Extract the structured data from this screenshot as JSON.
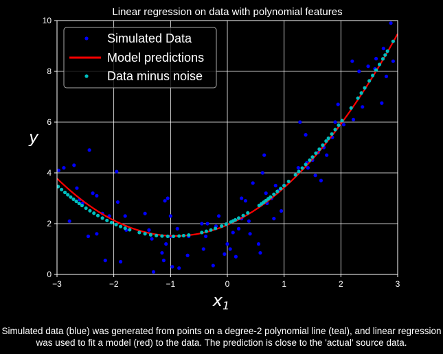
{
  "chart_data": {
    "type": "scatter",
    "title": "Linear regression on data with polynomial features",
    "xlabel": "x",
    "xlabel_sub": "1",
    "ylabel": "y",
    "xlim": [
      -3,
      3
    ],
    "ylim": [
      0,
      10
    ],
    "xticks": [
      "−3",
      "−2",
      "−1",
      "0",
      "1",
      "2",
      "3"
    ],
    "yticks": [
      "0",
      "2",
      "4",
      "6",
      "8",
      "10"
    ],
    "grid": true,
    "legend_position": "top-left",
    "series": [
      {
        "name": "Simulated Data",
        "kind": "points",
        "color": "#0000ff",
        "points": [
          [
            -2.97,
            4.1
          ],
          [
            -2.88,
            4.2
          ],
          [
            -2.78,
            2.1
          ],
          [
            -2.7,
            4.3
          ],
          [
            -2.65,
            3.4
          ],
          [
            -2.6,
            2.95
          ],
          [
            -2.55,
            2.8
          ],
          [
            -2.45,
            1.5
          ],
          [
            -2.43,
            4.9
          ],
          [
            -2.37,
            3.2
          ],
          [
            -2.3,
            3.1
          ],
          [
            -2.3,
            1.6
          ],
          [
            -2.2,
            2.4
          ],
          [
            -2.15,
            0.55
          ],
          [
            -2.08,
            2.3
          ],
          [
            -1.95,
            4.05
          ],
          [
            -1.93,
            2.85
          ],
          [
            -1.88,
            0.5
          ],
          [
            -1.8,
            2.3
          ],
          [
            -1.78,
            1.75
          ],
          [
            -1.45,
            2.4
          ],
          [
            -1.38,
            1.75
          ],
          [
            -1.33,
            1.4
          ],
          [
            -1.3,
            0.1
          ],
          [
            -1.15,
            0.85
          ],
          [
            -1.12,
            0.55
          ],
          [
            -1.1,
            2.9
          ],
          [
            -1.08,
            1.2
          ],
          [
            -1.05,
            3.0
          ],
          [
            -1.0,
            2.3
          ],
          [
            -1.0,
            1.5
          ],
          [
            -0.97,
            0.3
          ],
          [
            -0.88,
            1.8
          ],
          [
            -0.85,
            0.25
          ],
          [
            -0.7,
            0.75
          ],
          [
            -0.68,
            1.5
          ],
          [
            -0.45,
            2.0
          ],
          [
            -0.42,
            1.0
          ],
          [
            -0.38,
            1.5
          ],
          [
            -0.35,
            2.0
          ],
          [
            -0.25,
            0.35
          ],
          [
            -0.2,
            1.9
          ],
          [
            -0.15,
            2.3
          ],
          [
            -0.05,
            0.8
          ],
          [
            0.0,
            1.2
          ],
          [
            0.05,
            1.0
          ],
          [
            0.1,
            1.65
          ],
          [
            0.15,
            0.7
          ],
          [
            0.2,
            1.8
          ],
          [
            0.25,
            3.0
          ],
          [
            0.25,
            2.2
          ],
          [
            0.32,
            2.9
          ],
          [
            0.38,
            2.1
          ],
          [
            0.4,
            1.6
          ],
          [
            0.45,
            3.6
          ],
          [
            0.55,
            1.2
          ],
          [
            0.58,
            0.85
          ],
          [
            0.62,
            4.0
          ],
          [
            0.65,
            4.7
          ],
          [
            0.68,
            3.2
          ],
          [
            0.7,
            2.8
          ],
          [
            0.78,
            3.0
          ],
          [
            0.82,
            2.2
          ],
          [
            0.85,
            3.5
          ],
          [
            0.9,
            3.3
          ],
          [
            0.95,
            2.5
          ],
          [
            1.0,
            3.5
          ],
          [
            1.25,
            4.2
          ],
          [
            1.28,
            6.0
          ],
          [
            1.38,
            5.5
          ],
          [
            1.4,
            4.4
          ],
          [
            1.42,
            4.2
          ],
          [
            1.5,
            4.5
          ],
          [
            1.55,
            3.9
          ],
          [
            1.6,
            4.8
          ],
          [
            1.65,
            3.7
          ],
          [
            1.7,
            5.0
          ],
          [
            1.75,
            4.7
          ],
          [
            1.85,
            5.4
          ],
          [
            1.9,
            6.0
          ],
          [
            1.95,
            6.7
          ],
          [
            2.05,
            5.9
          ],
          [
            2.2,
            8.4
          ],
          [
            2.22,
            6.1
          ],
          [
            2.32,
            8.0
          ],
          [
            2.38,
            6.6
          ],
          [
            2.48,
            8.2
          ],
          [
            2.6,
            8.1
          ],
          [
            2.62,
            8.5
          ],
          [
            2.72,
            6.75
          ],
          [
            2.75,
            8.9
          ],
          [
            2.8,
            7.8
          ],
          [
            2.88,
            9.9
          ],
          [
            2.92,
            8.4
          ]
        ]
      },
      {
        "name": "Model predictions",
        "kind": "curve",
        "color": "#ff0000",
        "coefficients": [
          1.95,
          0.95,
          0.52
        ]
      },
      {
        "name": "Data minus noise",
        "kind": "points",
        "color": "#00bfbf",
        "x": [
          -2.98,
          -2.92,
          -2.86,
          -2.81,
          -2.76,
          -2.71,
          -2.66,
          -2.61,
          -2.56,
          -2.49,
          -2.42,
          -2.35,
          -2.28,
          -2.2,
          -2.12,
          -2.04,
          -1.96,
          -1.88,
          -1.8,
          -1.72,
          -1.55,
          -1.45,
          -1.35,
          -1.25,
          -1.15,
          -1.05,
          -0.95,
          -0.85,
          -0.77,
          -0.68,
          -0.45,
          -0.37,
          -0.29,
          -0.21,
          -0.1,
          -0.02,
          0.06,
          0.1,
          0.14,
          0.2,
          0.28,
          0.36,
          0.56,
          0.6,
          0.64,
          0.68,
          0.72,
          0.76,
          0.82,
          0.88,
          0.94,
          1.0,
          1.08,
          1.2,
          1.26,
          1.32,
          1.38,
          1.45,
          1.5,
          1.56,
          1.62,
          1.68,
          1.74,
          1.78,
          1.84,
          1.9,
          1.96,
          2.02,
          2.18,
          2.3,
          2.36,
          2.42,
          2.5,
          2.56,
          2.62,
          2.68,
          2.74,
          2.78,
          2.82,
          2.92
        ],
        "coefficients": [
          2.0,
          1.0,
          0.5
        ]
      }
    ]
  },
  "caption": "Simulated data (blue) was generated from points on a degree-2 polynomial line (teal), and linear regression was used to fit a model (red) to the data. The prediction is close to the 'actual' source data."
}
